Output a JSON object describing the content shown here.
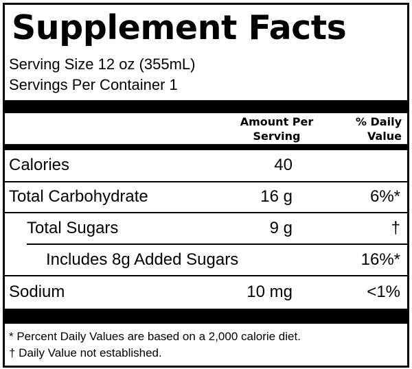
{
  "title": "Supplement Facts",
  "serving_size": "Serving Size 12 oz (355mL)",
  "servings_per_container": "Servings Per Container 1",
  "header": {
    "amount_line1": "Amount Per",
    "amount_line2": "Serving",
    "dv_line1": "% Daily",
    "dv_line2": "Value"
  },
  "rows": [
    {
      "label": "Calories",
      "amount": "40",
      "dv": ""
    },
    {
      "label": "Total Carbohydrate",
      "amount": "16 g",
      "dv": "6%*"
    },
    {
      "label": "Total Sugars",
      "amount": "9 g",
      "dv": "†"
    },
    {
      "label": "Includes 8g Added Sugars",
      "amount": "",
      "dv": "16%*"
    },
    {
      "label": "Sodium",
      "amount": "10 mg",
      "dv": "<1%"
    }
  ],
  "footnotes": [
    "* Percent Daily Values are based on a 2,000 calorie diet.",
    "† Daily Value not established."
  ]
}
